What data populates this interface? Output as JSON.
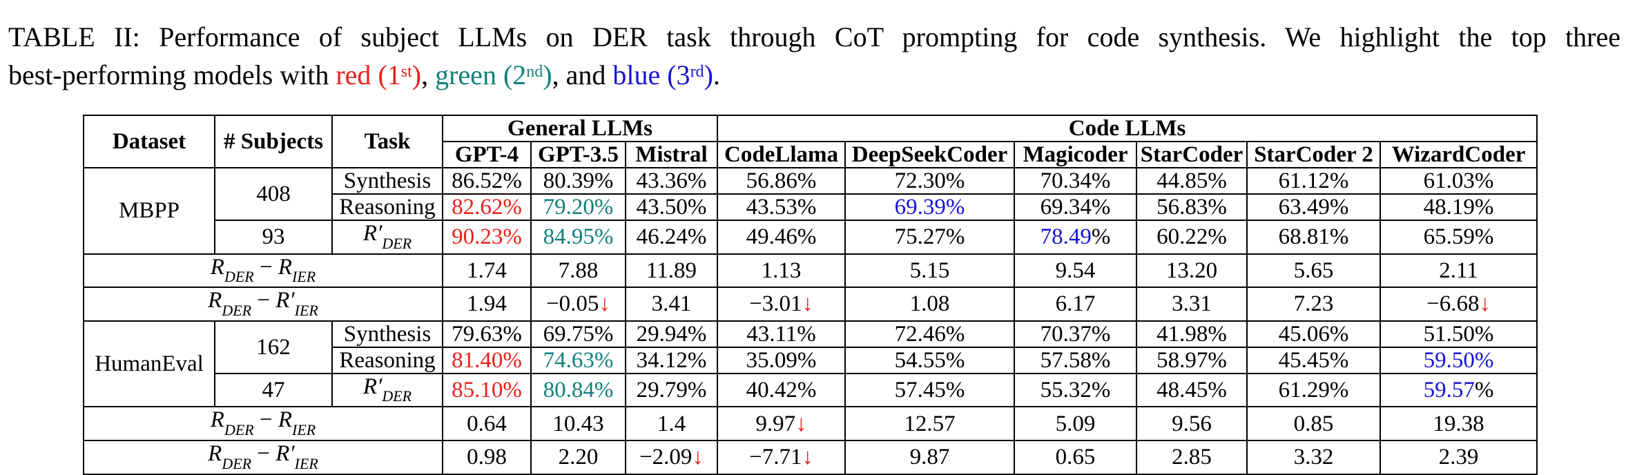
{
  "caption": {
    "label": "TABLE II:",
    "text_before": "Performance of subject LLMs on DER task through CoT prompting for code synthesis. We highlight the top three",
    "text_line2_start": "best-performing models with",
    "red_word": "red",
    "red_rank": "(1",
    "red_sup": "st",
    "close_paren": ")",
    "comma": ",",
    "green_word": "green",
    "green_rank": "(2",
    "green_sup": "nd",
    "and_word": ", and",
    "blue_word": "blue",
    "blue_rank": "(3",
    "blue_sup": "rd",
    "end": "."
  },
  "header": {
    "dataset": "Dataset",
    "subjects": "# Subjects",
    "task": "Task",
    "general_group": "General LLMs",
    "code_group": "Code LLMs",
    "models": [
      "GPT-4",
      "GPT-3.5",
      "Mistral",
      "CodeLlama",
      "DeepSeekCoder",
      "Magicoder",
      "StarCoder",
      "StarCoder 2",
      "WizardCoder"
    ]
  },
  "colors": {
    "first": "#e8201a",
    "second": "#11807b",
    "third": "#1414d6"
  },
  "mbpp": {
    "name": "MBPP",
    "subjects_main": "408",
    "subjects_r": "93",
    "synthesis_label": "Synthesis",
    "reasoning_label": "Reasoning",
    "synthesis": [
      "86.52%",
      "80.39%",
      "43.36%",
      "56.86%",
      "72.30%",
      "70.34%",
      "44.85%",
      "61.12%",
      "61.03%"
    ],
    "reasoning": [
      "82.62%",
      "79.20%",
      "43.50%",
      "43.53%",
      "69.39%",
      "69.34%",
      "56.83%",
      "63.49%",
      "48.19%"
    ],
    "rprime": [
      "90.23%",
      "84.95%",
      "46.24%",
      "49.46%",
      "75.27%",
      "78.49",
      "60.22%",
      "68.81%",
      "65.59%"
    ],
    "rprime_suffix_magicoder": "%",
    "diff_ier": [
      "1.74",
      "7.88",
      "11.89",
      "1.13",
      "5.15",
      "9.54",
      "13.20",
      "5.65",
      "2.11"
    ],
    "diff_ier_prime": [
      "1.94",
      "−0.05",
      "3.41",
      "−3.01",
      "1.08",
      "6.17",
      "3.31",
      "7.23",
      "−6.68"
    ]
  },
  "humaneval": {
    "name": "HumanEval",
    "subjects_main": "162",
    "subjects_r": "47",
    "synthesis_label": "Synthesis",
    "reasoning_label": "Reasoning",
    "synthesis": [
      "79.63%",
      "69.75%",
      "29.94%",
      "43.11%",
      "72.46%",
      "70.37%",
      "41.98%",
      "45.06%",
      "51.50%"
    ],
    "reasoning": [
      "81.40%",
      "74.63%",
      "34.12%",
      "35.09%",
      "54.55%",
      "57.58%",
      "58.97%",
      "45.45%",
      "59.50%"
    ],
    "rprime": [
      "85.10%",
      "80.84%",
      "29.79%",
      "40.42%",
      "57.45%",
      "55.32%",
      "48.45%",
      "61.29%",
      "59.57"
    ],
    "rprime_suffix_wizard": "%",
    "diff_ier": [
      "0.64",
      "10.43",
      "1.4",
      "9.97",
      "12.57",
      "5.09",
      "9.56",
      "0.85",
      "19.38"
    ],
    "diff_ier_prime": [
      "0.98",
      "2.20",
      "−2.09",
      "−7.71",
      "9.87",
      "0.65",
      "2.85",
      "3.32",
      "2.39"
    ]
  },
  "math": {
    "r": "R",
    "der": "DER",
    "ier": "IER",
    "minus": " − ",
    "prime": "′",
    "arrow": "↓"
  }
}
